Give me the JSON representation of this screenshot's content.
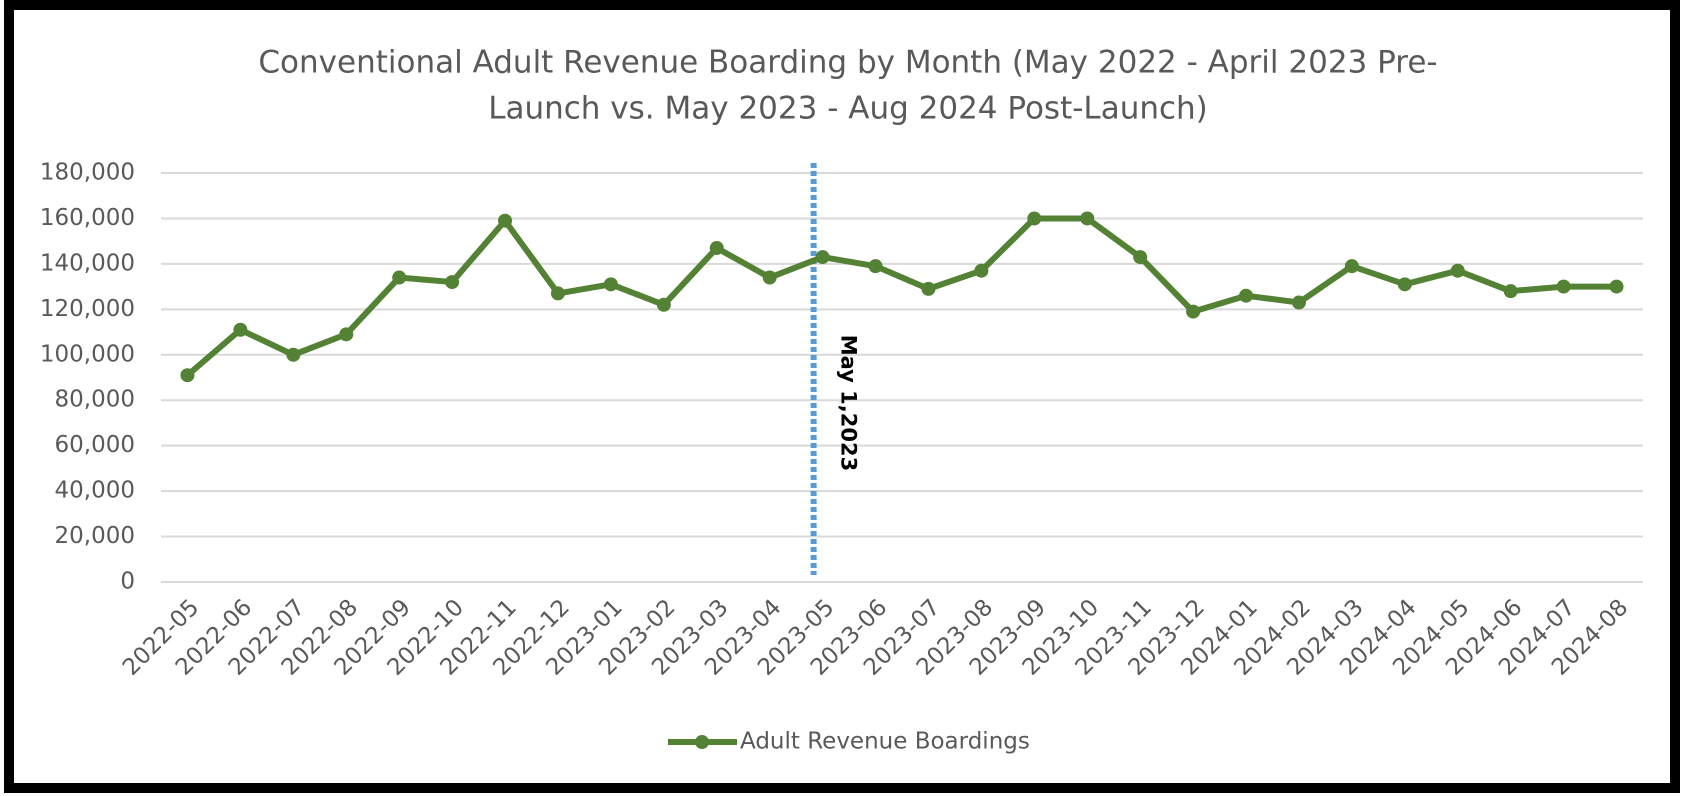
{
  "chart_data": {
    "type": "line",
    "title": [
      "Conventional Adult Revenue Boarding by Month (May 2022 - April 2023 Pre-",
      "Launch vs. May 2023 - Aug 2024 Post-Launch)"
    ],
    "categories": [
      "2022-05",
      "2022-06",
      "2022-07",
      "2022-08",
      "2022-09",
      "2022-10",
      "2022-11",
      "2022-12",
      "2023-01",
      "2023-02",
      "2023-03",
      "2023-04",
      "2023-05",
      "2023-06",
      "2023-07",
      "2023-08",
      "2023-09",
      "2023-10",
      "2023-11",
      "2023-12",
      "2024-01",
      "2024-02",
      "2024-03",
      "2024-04",
      "2024-05",
      "2024-06",
      "2024-07",
      "2024-08"
    ],
    "series": [
      {
        "name": "Adult Revenue Boardings",
        "color": "#548235",
        "values": [
          91000,
          111000,
          100000,
          109000,
          134000,
          132000,
          159000,
          127000,
          131000,
          122000,
          147000,
          134000,
          143000,
          139000,
          129000,
          137000,
          160000,
          160000,
          143000,
          119000,
          126000,
          123000,
          139000,
          131000,
          137000,
          128000,
          130000,
          130000
        ]
      }
    ],
    "ylim": [
      0,
      180000
    ],
    "yticks": [
      0,
      {
        "value": 20000,
        "label": "20,000"
      },
      {
        "value": 40000,
        "label": "40,000"
      },
      {
        "value": 60000,
        "label": "60,000"
      },
      {
        "value": 80000,
        "label": "80,000"
      },
      {
        "value": 100000,
        "label": "100,000"
      },
      {
        "value": 120000,
        "label": "120,000"
      },
      {
        "value": 140000,
        "label": "140,000"
      },
      {
        "value": 160000,
        "label": "160,000"
      },
      {
        "value": 180000,
        "label": "180,000"
      }
    ],
    "grid": true,
    "legend": "bottom",
    "annotation": {
      "text": "May 1,2023",
      "x": "2023-05",
      "color": "#5b9bd5"
    }
  }
}
